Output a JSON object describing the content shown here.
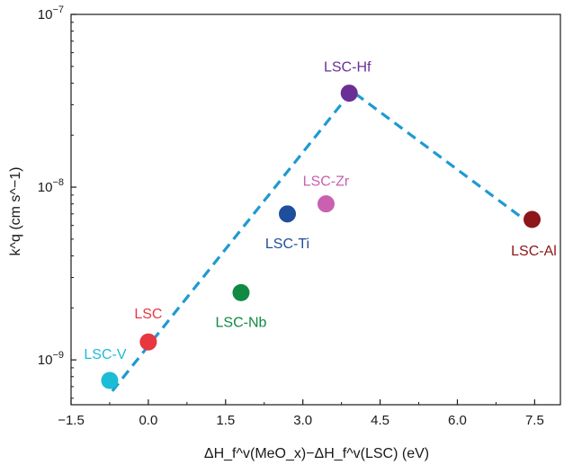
{
  "chart_data": {
    "type": "scatter",
    "xlabel": "ΔH_f^v(MeO_x)−ΔH_f^v(LSC) (eV)",
    "ylabel": "k^q (cm s^−1)",
    "xlim": [
      -1.5,
      8.0
    ],
    "ylim": [
      5.5e-10,
      1e-07
    ],
    "yscale": "log",
    "grid": false,
    "x_ticks": [
      {
        "value": -1.5,
        "label": "−1.5"
      },
      {
        "value": 0.0,
        "label": "0.0"
      },
      {
        "value": 1.5,
        "label": "1.5"
      },
      {
        "value": 3.0,
        "label": "3.0"
      },
      {
        "value": 4.5,
        "label": "4.5"
      },
      {
        "value": 6.0,
        "label": "6.0"
      },
      {
        "value": 7.5,
        "label": "7.5"
      }
    ],
    "y_ticks": [
      {
        "value": 1e-09,
        "mantissa": "10",
        "exponent": "−9"
      },
      {
        "value": 1e-08,
        "mantissa": "10",
        "exponent": "−8"
      },
      {
        "value": 1e-07,
        "mantissa": "10",
        "exponent": "−7"
      }
    ],
    "points": [
      {
        "label": "LSC-V",
        "x": -0.75,
        "y": 7.6e-10,
        "color": "#1bbdd4"
      },
      {
        "label": "LSC",
        "x": 0.0,
        "y": 1.27e-09,
        "color": "#e8373f"
      },
      {
        "label": "LSC-Nb",
        "x": 1.8,
        "y": 2.45e-09,
        "color": "#0f8a43"
      },
      {
        "label": "LSC-Ti",
        "x": 2.7,
        "y": 7e-09,
        "color": "#1f4e9c"
      },
      {
        "label": "LSC-Zr",
        "x": 3.45,
        "y": 8e-09,
        "color": "#c961b0"
      },
      {
        "label": "LSC-Hf",
        "x": 3.9,
        "y": 3.5e-08,
        "color": "#6a2f96"
      },
      {
        "label": "LSC-Al",
        "x": 7.45,
        "y": 6.5e-09,
        "color": "#8c1618"
      }
    ],
    "trend_line": {
      "color": "#1f9ad1",
      "style": "dashed",
      "points": [
        {
          "x": -0.7,
          "y": 6.6e-10
        },
        {
          "x": 3.95,
          "y": 3.6e-08
        },
        {
          "x": 7.3,
          "y": 6.5e-09
        }
      ]
    }
  }
}
